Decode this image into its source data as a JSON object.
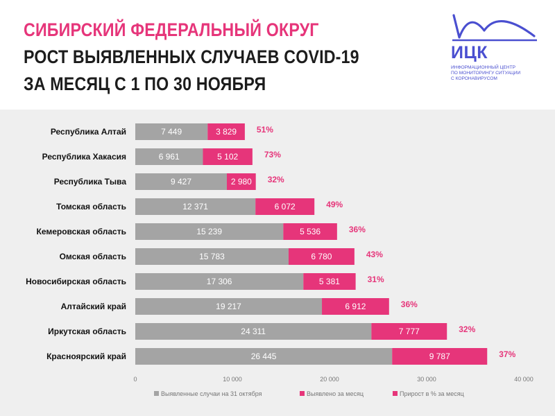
{
  "header": {
    "title_line1": "Сибирский федеральный округ",
    "title_line2": "Рост выявленных случаев COVID-19",
    "title_line3": "за месяц с 1 по 30 ноября"
  },
  "logo": {
    "abbr": "ИЦК",
    "sub_line1": "Информационный центр",
    "sub_line2": "по мониторингу ситуации",
    "sub_line3": "с коронавирусом"
  },
  "colors": {
    "base": "#a4a4a4",
    "month": "#e6357a",
    "pct": "#e6357a",
    "background": "#efefef"
  },
  "chart_data": {
    "type": "bar",
    "orientation": "horizontal",
    "stacked": true,
    "categories": [
      "Республика Алтай",
      "Республика Хакасия",
      "Республика Тыва",
      "Томская область",
      "Кемеровская область",
      "Омская область",
      "Новосибирская область",
      "Алтайский край",
      "Иркутская область",
      "Красноярский край"
    ],
    "series": [
      {
        "name": "Выявленные случаи на 31 октября",
        "values": [
          7449,
          6961,
          9427,
          12371,
          15239,
          15783,
          17306,
          19217,
          24311,
          26445
        ],
        "labels": [
          "7 449",
          "6 961",
          "9 427",
          "12 371",
          "15 239",
          "15 783",
          "17 306",
          "19 217",
          "24 311",
          "26 445"
        ]
      },
      {
        "name": "Выявлено за месяц",
        "values": [
          3829,
          5102,
          2980,
          6072,
          5536,
          6780,
          5381,
          6912,
          7777,
          9787
        ],
        "labels": [
          "3 829",
          "5 102",
          "2 980",
          "6 072",
          "5 536",
          "6 780",
          "5 381",
          "6 912",
          "7 777",
          "9 787"
        ]
      },
      {
        "name": "Прирост в % за месяц",
        "values": [
          51,
          73,
          32,
          49,
          36,
          43,
          31,
          36,
          32,
          37
        ],
        "labels": [
          "51%",
          "73%",
          "32%",
          "49%",
          "36%",
          "43%",
          "31%",
          "36%",
          "32%",
          "37%"
        ]
      }
    ],
    "xlim": [
      0,
      40000
    ],
    "xticks": [
      0,
      10000,
      20000,
      30000,
      40000
    ],
    "xtick_labels": [
      "0",
      "10 000",
      "20 000",
      "30 000",
      "40 000"
    ],
    "legend_position": "bottom"
  }
}
